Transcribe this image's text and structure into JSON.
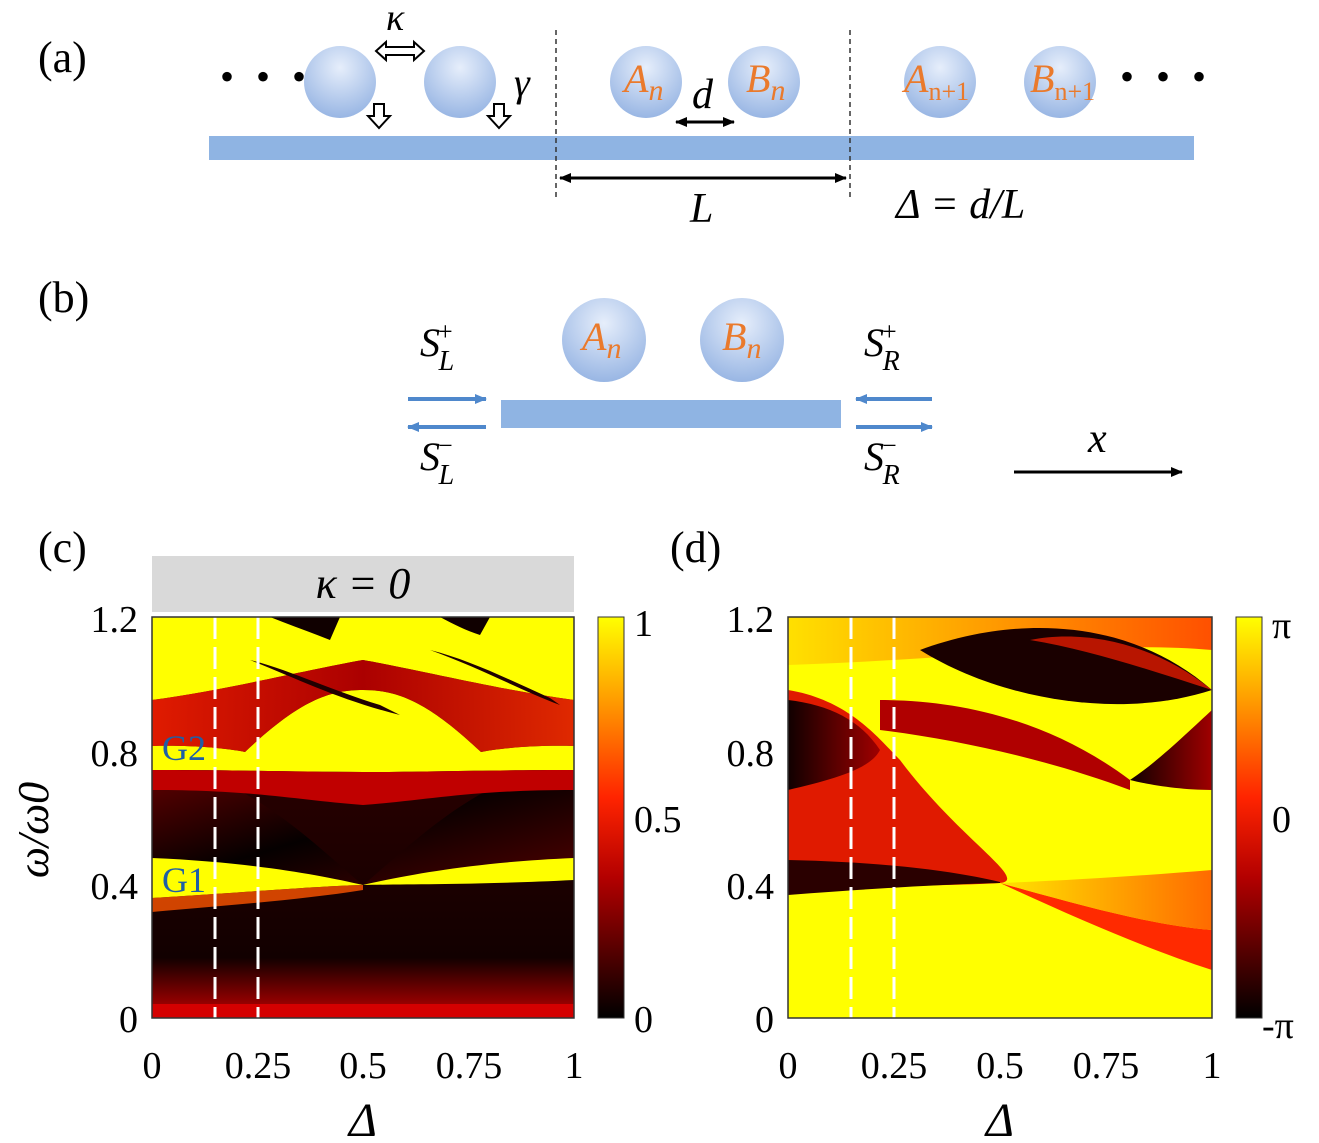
{
  "panel_labels": {
    "a": "(a)",
    "b": "(b)",
    "c": "(c)",
    "d": "(d)"
  },
  "panel_a": {
    "left_dots": "• • •",
    "right_dots": "• • •",
    "kappa": "κ",
    "gamma": "γ",
    "A": "A",
    "A_sub": "n",
    "B": "B",
    "B_sub": "n",
    "A1": "A",
    "A1_sub": "n+1",
    "B1": "B",
    "B1_sub": "n+1",
    "d": "d",
    "L": "L",
    "delta_eq": "Δ = d/L"
  },
  "panel_b": {
    "A": "A",
    "A_sub": "n",
    "B": "B",
    "B_sub": "n",
    "SLp": "S",
    "SLp_sub": "L",
    "SLp_sup": "+",
    "SLm": "S",
    "SLm_sub": "L",
    "SLm_sup": "−",
    "SRp": "S",
    "SRp_sub": "R",
    "SRp_sup": "+",
    "SRm": "S",
    "SRm_sub": "R",
    "SRm_sup": "−",
    "x": "x"
  },
  "colors": {
    "waveguide": "#8fb4e3",
    "arrow_blue": "#4f88cc",
    "resonator_light": "#e3ecfa",
    "resonator_dark": "#93b2e2",
    "label_orange": "#ea7a2c",
    "gap_label": "#1f5fa6"
  },
  "chart_data": [
    {
      "type": "heatmap",
      "panel": "c",
      "title": "κ = 0",
      "xlabel": "Δ",
      "ylabel": "ω/ω0",
      "xlim": [
        0,
        1
      ],
      "ylim": [
        0,
        1.2
      ],
      "xticks": [
        "0",
        "0.25",
        "0.5",
        "0.75",
        "1"
      ],
      "yticks": [
        "0",
        "0.4",
        "0.8",
        "1.2"
      ],
      "colorbar": {
        "ticks": [
          "0",
          "0.5",
          "1"
        ],
        "range": [
          0,
          1
        ],
        "colormap": "hot"
      },
      "dashed_lines_x": [
        0.15,
        0.25
      ],
      "annotations": [
        {
          "text": "G1",
          "x": 0.05,
          "y": 0.42
        },
        {
          "text": "G2",
          "x": 0.05,
          "y": 0.8
        }
      ],
      "band_crossings": [
        {
          "x": 0.5,
          "y": 0.42
        },
        {
          "x": 0.2,
          "y": 0.79
        },
        {
          "x": 0.8,
          "y": 0.79
        },
        {
          "x": 0.5,
          "y": 0.98
        }
      ]
    },
    {
      "type": "heatmap",
      "panel": "d",
      "xlabel": "Δ",
      "ylabel": "",
      "xlim": [
        0,
        1
      ],
      "ylim": [
        0,
        1.2
      ],
      "xticks": [
        "0",
        "0.25",
        "0.5",
        "0.75",
        "1"
      ],
      "yticks": [
        "0",
        "0.4",
        "0.8",
        "1.2"
      ],
      "colorbar": {
        "ticks": [
          "π",
          "0",
          "-π"
        ],
        "range": [
          "-π",
          "π"
        ],
        "colormap": "hot"
      },
      "dashed_lines_x": [
        0.15,
        0.25
      ]
    }
  ]
}
